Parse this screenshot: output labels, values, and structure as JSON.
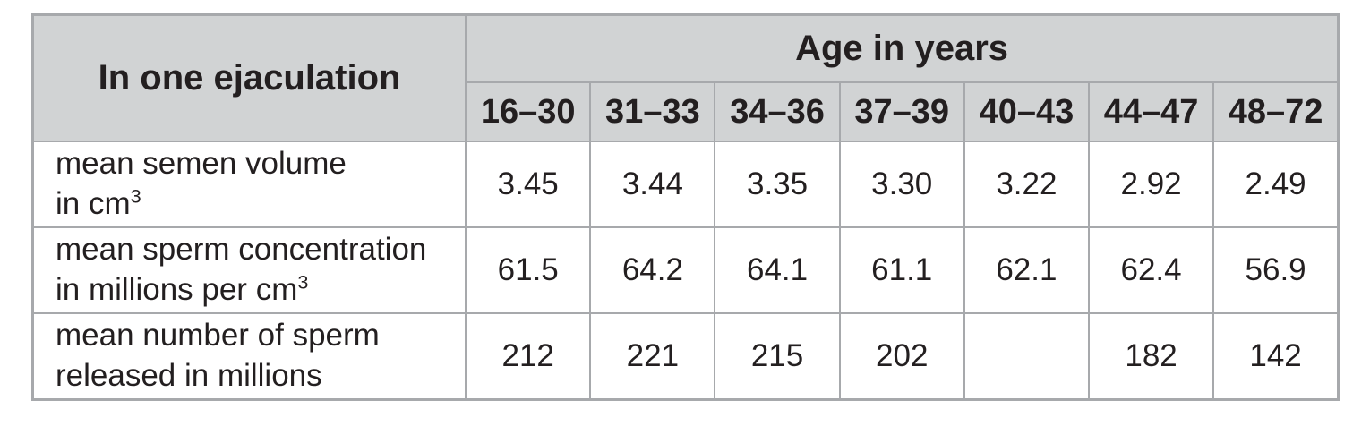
{
  "table": {
    "row_group_header": "In one ejaculation",
    "column_group_header": "Age in years",
    "age_columns": [
      "16–30",
      "31–33",
      "34–36",
      "37–39",
      "40–43",
      "44–47",
      "48–72"
    ],
    "rows": [
      {
        "label_line1": "mean semen volume",
        "label_line2": "in cm",
        "label_sup": "3",
        "values": [
          "3.45",
          "3.44",
          "3.35",
          "3.30",
          "3.22",
          "2.92",
          "2.49"
        ]
      },
      {
        "label_line1": "mean sperm concentration",
        "label_line2": "in millions per cm",
        "label_sup": "3",
        "values": [
          "61.5",
          "64.2",
          "64.1",
          "61.1",
          "62.1",
          "62.4",
          "56.9"
        ]
      },
      {
        "label_line1": "mean number of sperm",
        "label_line2": "released in millions",
        "values": [
          "212",
          "221",
          "215",
          "202",
          "",
          "182",
          "142"
        ]
      }
    ]
  },
  "colors": {
    "header_bg": "#d1d3d4",
    "border": "#a7a9ac",
    "text": "#231f20",
    "background": "#ffffff"
  },
  "chart_data": {
    "type": "table",
    "title": "",
    "row_group_label": "In one ejaculation",
    "column_group_label": "Age in years",
    "columns": [
      "16–30",
      "31–33",
      "34–36",
      "37–39",
      "40–43",
      "44–47",
      "48–72"
    ],
    "rows": [
      {
        "label": "mean semen volume in cm³",
        "values": [
          3.45,
          3.44,
          3.35,
          3.3,
          3.22,
          2.92,
          2.49
        ]
      },
      {
        "label": "mean sperm concentration in millions per cm³",
        "values": [
          61.5,
          64.2,
          64.1,
          61.1,
          62.1,
          62.4,
          56.9
        ]
      },
      {
        "label": "mean number of sperm released in millions",
        "values": [
          212,
          221,
          215,
          202,
          null,
          182,
          142
        ]
      }
    ]
  }
}
